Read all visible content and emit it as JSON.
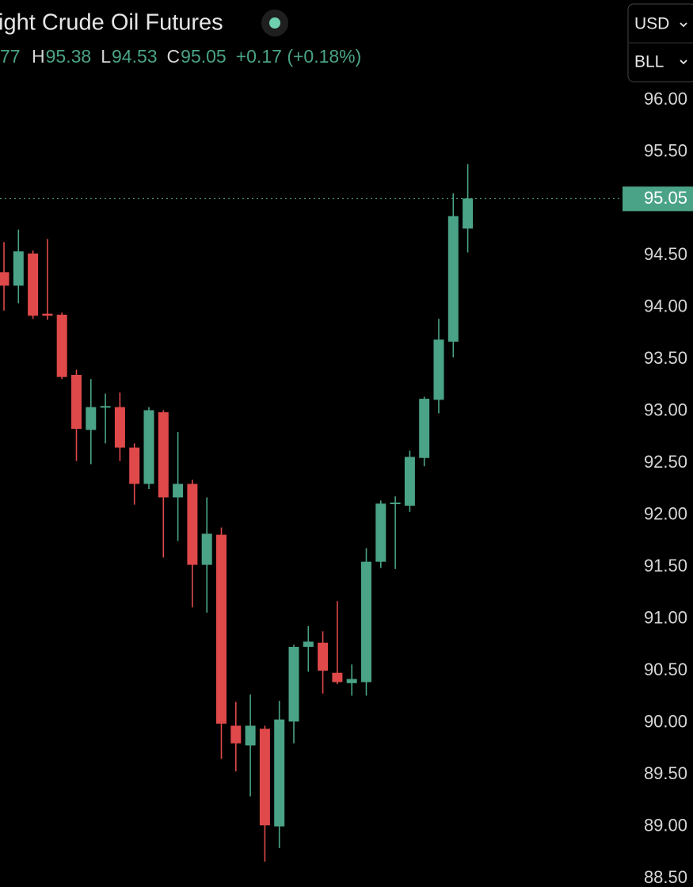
{
  "header": {
    "title": "ight Crude Oil Futures",
    "open_partial": "77",
    "ohlc": [
      {
        "label": "H",
        "value": "95.38"
      },
      {
        "label": "L",
        "value": "94.53"
      },
      {
        "label": "C",
        "value": "95.05"
      }
    ],
    "change": "+0.17 (+0.18%)"
  },
  "controls": {
    "currency": "USD",
    "unit": "BLL"
  },
  "chart_data": {
    "type": "candlestick",
    "up_color": "#4aa387",
    "down_color": "#e0494a",
    "open": [
      94.34,
      94.21,
      94.52,
      93.94,
      93.93,
      93.35,
      92.82,
      93.04,
      93.04,
      92.65,
      92.3,
      92.99,
      92.17,
      92.3,
      91.52,
      91.81,
      89.97,
      89.78,
      89.94,
      89.0,
      90.01,
      90.73,
      90.77,
      90.48,
      90.38,
      90.39,
      91.55,
      92.11,
      92.09,
      92.55,
      93.11,
      93.67,
      94.76
    ],
    "high": [
      94.63,
      94.75,
      94.55,
      94.66,
      93.95,
      93.4,
      93.31,
      93.17,
      93.18,
      92.69,
      93.04,
      93.01,
      92.8,
      92.34,
      92.17,
      91.88,
      90.2,
      90.27,
      89.97,
      90.21,
      90.75,
      90.93,
      90.88,
      91.17,
      90.56,
      91.68,
      92.14,
      92.18,
      92.62,
      93.14,
      93.89,
      95.1,
      95.38
    ],
    "low": [
      93.97,
      94.04,
      93.89,
      93.88,
      93.31,
      92.52,
      92.49,
      92.69,
      92.52,
      92.1,
      92.25,
      91.59,
      91.75,
      91.11,
      91.06,
      89.65,
      89.53,
      89.29,
      88.66,
      88.79,
      89.8,
      90.49,
      90.28,
      90.37,
      90.26,
      90.26,
      91.49,
      91.48,
      92.03,
      92.47,
      92.98,
      93.52,
      94.53
    ],
    "close": [
      94.21,
      94.54,
      93.92,
      93.92,
      93.33,
      92.83,
      93.04,
      93.05,
      92.65,
      92.3,
      93.01,
      92.17,
      92.3,
      91.52,
      91.82,
      89.99,
      89.8,
      89.97,
      89.01,
      90.03,
      90.73,
      90.78,
      90.5,
      90.39,
      90.42,
      91.55,
      92.11,
      92.12,
      92.56,
      93.12,
      93.69,
      94.88,
      95.05
    ],
    "ylim": [
      88.5,
      96
    ],
    "yticks": [
      {
        "value": 96,
        "label": "96.00"
      },
      {
        "value": 95.5,
        "label": "95.50"
      },
      {
        "value": 95,
        "label": "95.00"
      },
      {
        "value": 94.5,
        "label": "94.50"
      },
      {
        "value": 94,
        "label": "94.00"
      },
      {
        "value": 93.5,
        "label": "93.50"
      },
      {
        "value": 93,
        "label": "93.00"
      },
      {
        "value": 92.5,
        "label": "92.50"
      },
      {
        "value": 92,
        "label": "92.00"
      },
      {
        "value": 91.5,
        "label": "91.50"
      },
      {
        "value": 91,
        "label": "91.00"
      },
      {
        "value": 90.5,
        "label": "90.50"
      },
      {
        "value": 90,
        "label": "90.00"
      },
      {
        "value": 89.5,
        "label": "89.50"
      },
      {
        "value": 89,
        "label": "89.00"
      },
      {
        "value": 88.5,
        "label": "88.50"
      }
    ]
  }
}
